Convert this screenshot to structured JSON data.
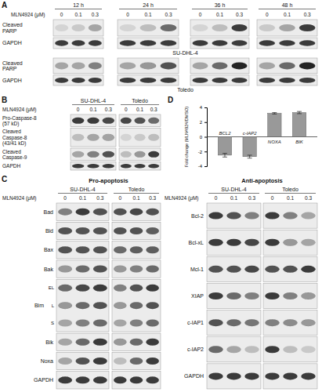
{
  "panel_a": {
    "letter": "A",
    "treatment": "MLN4924 (μM)",
    "doses": [
      "0",
      "0.1",
      "0.3"
    ],
    "groups": [
      "12 h",
      "24 h",
      "36 h",
      "48 h"
    ],
    "blots": [
      {
        "cell_line": "SU-DHL-4",
        "rows": [
          {
            "label": [
              "Cleaved",
              "PARP"
            ],
            "bands": [
              [
                0.1,
                0.15,
                0.3
              ],
              [
                0.1,
                0.2,
                0.6
              ],
              [
                0.1,
                0.2,
                0.8
              ],
              [
                0.15,
                0.3,
                0.8
              ]
            ]
          },
          {
            "label": [
              "GAPDH"
            ],
            "bands": [
              [
                0.8,
                0.8,
                0.8
              ],
              [
                0.8,
                0.8,
                0.8
              ],
              [
                0.8,
                0.8,
                0.8
              ],
              [
                0.8,
                0.8,
                0.8
              ]
            ]
          }
        ]
      },
      {
        "cell_line": "Toledo",
        "rows": [
          {
            "label": [
              "Cleaved",
              "PARP"
            ],
            "bands": [
              [
                0.3,
                0.3,
                0.5
              ],
              [
                0.3,
                0.4,
                0.7
              ],
              [
                0.3,
                0.6,
                0.9
              ],
              [
                0.3,
                0.6,
                0.9
              ]
            ]
          },
          {
            "label": [
              "GAPDH"
            ],
            "bands": [
              [
                0.8,
                0.8,
                0.8
              ],
              [
                0.8,
                0.8,
                0.8
              ],
              [
                0.8,
                0.8,
                0.8
              ],
              [
                0.8,
                0.8,
                0.8
              ]
            ]
          }
        ]
      }
    ]
  },
  "panel_b": {
    "letter": "B",
    "treatment": "MLN4924 (μM)",
    "doses": [
      "0",
      "0.1",
      "0.3"
    ],
    "groups": [
      "SU-DHL-4",
      "Toledo"
    ],
    "rows": [
      {
        "label": [
          "Pro-Caspase-8",
          "(57 kD)"
        ],
        "bands": [
          [
            0.8,
            0.8,
            0.75
          ],
          [
            0.75,
            0.7,
            0.6
          ]
        ]
      },
      {
        "label": [
          "Cleaved",
          "Caspase-8",
          "(43/41 kD)"
        ],
        "bands": [
          [
            0.2,
            0.3,
            0.35
          ],
          [
            0.1,
            0.15,
            0.2
          ]
        ]
      },
      {
        "label": [
          "Cleaved",
          "Caspase-9"
        ],
        "bands": [
          [
            0.3,
            0.5,
            0.7
          ],
          [
            0.2,
            0.4,
            0.8
          ]
        ]
      },
      {
        "label": [
          "GAPDH"
        ],
        "bands": [
          [
            0.8,
            0.8,
            0.8
          ],
          [
            0.8,
            0.8,
            0.8
          ]
        ]
      }
    ]
  },
  "panel_c": {
    "letter": "C",
    "treatment": "MLN4924 (μM)",
    "doses": [
      "0",
      "0.1",
      "0.3"
    ],
    "groups": [
      "SU-DHL-4",
      "Toledo"
    ],
    "sides": [
      {
        "title": "Pro-apoptosis",
        "rows": [
          {
            "label": [
              "Bad"
            ],
            "bands": [
              [
                0.5,
                0.8,
                0.7
              ],
              [
                0.7,
                0.75,
                0.7
              ]
            ]
          },
          {
            "label": [
              "Bid"
            ],
            "bands": [
              [
                0.7,
                0.7,
                0.7
              ],
              [
                0.7,
                0.7,
                0.65
              ]
            ]
          },
          {
            "label": [
              "Bax"
            ],
            "bands": [
              [
                0.7,
                0.7,
                0.7
              ],
              [
                0.6,
                0.65,
                0.65
              ]
            ]
          },
          {
            "label": [
              "Bak"
            ],
            "bands": [
              [
                0.4,
                0.6,
                0.7
              ],
              [
                0.4,
                0.5,
                0.6
              ]
            ]
          },
          {
            "label": [
              "Bim"
            ],
            "sub_labels": [
              "EL",
              "L",
              "S"
            ],
            "bands": [
              [
                [
                  0.6,
                  0.75,
                  0.8
                ],
                [
                  0.5,
                  0.7,
                  0.8
                ]
              ],
              [
                [
                  0.4,
                  0.6,
                  0.7
                ],
                [
                  0.4,
                  0.6,
                  0.7
                ]
              ],
              [
                [
                  0.3,
                  0.5,
                  0.6
                ],
                [
                  0.3,
                  0.5,
                  0.6
                ]
              ]
            ]
          },
          {
            "label": [
              "Bik"
            ],
            "bands": [
              [
                0.3,
                0.6,
                0.8
              ],
              [
                0.4,
                0.6,
                0.8
              ]
            ]
          },
          {
            "label": [
              "Noxa"
            ],
            "bands": [
              [
                0.3,
                0.7,
                0.8
              ],
              [
                0.2,
                0.6,
                0.8
              ]
            ]
          },
          {
            "label": [
              "GAPDH"
            ],
            "bands": [
              [
                0.8,
                0.8,
                0.8
              ],
              [
                0.8,
                0.8,
                0.8
              ]
            ]
          }
        ]
      },
      {
        "title": "Anti-apoptosis",
        "rows": [
          {
            "label": [
              "Bcl-2"
            ],
            "bands": [
              [
                0.8,
                0.7,
                0.5
              ],
              [
                0.8,
                0.5,
                0.3
              ]
            ]
          },
          {
            "label": [
              "Bcl-xL"
            ],
            "bands": [
              [
                0.8,
                0.8,
                0.75
              ],
              [
                0.8,
                0.4,
                0.3
              ]
            ]
          },
          {
            "label": [
              "Mcl-1"
            ],
            "bands": [
              [
                0.7,
                0.7,
                0.75
              ],
              [
                0.7,
                0.7,
                0.8
              ]
            ]
          },
          {
            "label": [
              "XIAP"
            ],
            "bands": [
              [
                0.8,
                0.6,
                0.5
              ],
              [
                0.8,
                0.5,
                0.4
              ]
            ]
          },
          {
            "label": [
              "c-IAP1"
            ],
            "bands": [
              [
                0.7,
                0.6,
                0.55
              ],
              [
                0.5,
                0.45,
                0.4
              ]
            ]
          },
          {
            "label": [
              "c-IAP2"
            ],
            "bands": [
              [
                0.6,
                0.3,
                0.2
              ],
              [
                0.8,
                0.2,
                0.15
              ]
            ]
          },
          {
            "label": [
              "GAPDH"
            ],
            "bands": [
              [
                0.8,
                0.8,
                0.8
              ],
              [
                0.8,
                0.8,
                0.8
              ]
            ]
          }
        ]
      }
    ]
  },
  "panel_d": {
    "letter": "D"
  },
  "chart_data": {
    "type": "bar",
    "y_label": "Fold change (MLN4924/DMSO)",
    "categories": [
      "BCL2",
      "c-IAP2",
      "NOXA",
      "BIK"
    ],
    "values": [
      -2.5,
      -2.7,
      3.2,
      3.3
    ],
    "errors": [
      0.25,
      0.2,
      0.1,
      0.15
    ],
    "color": "#999999",
    "ylim": [
      -4,
      4
    ],
    "yticks": [
      -4,
      -2,
      0,
      2,
      4
    ]
  }
}
